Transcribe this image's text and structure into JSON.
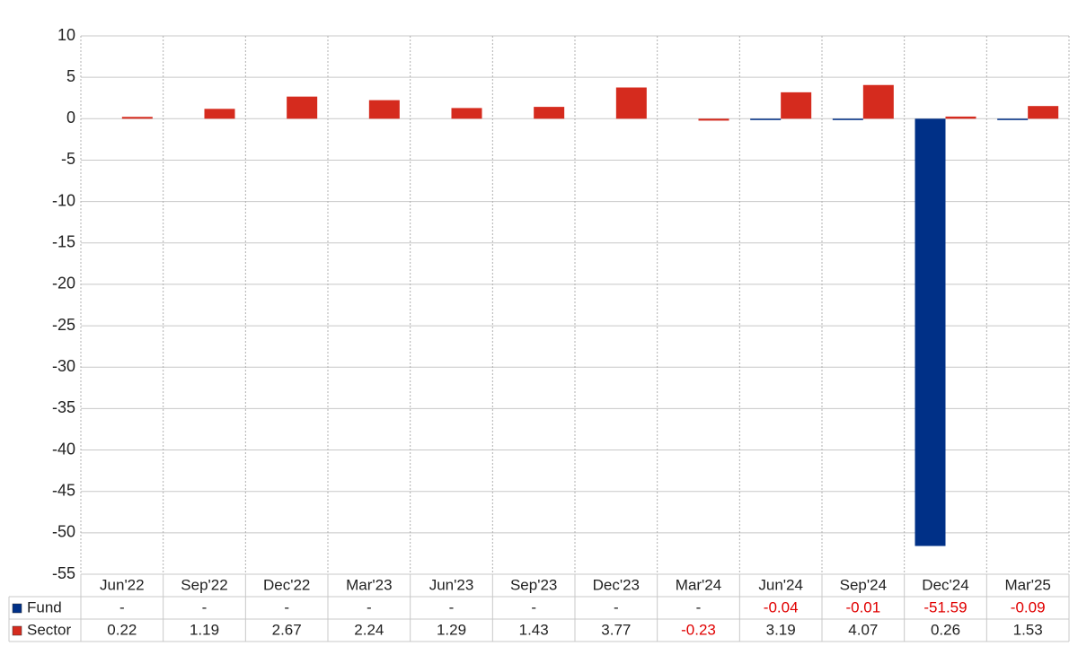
{
  "chart_data": {
    "type": "bar",
    "categories": [
      "Jun'22",
      "Sep'22",
      "Dec'22",
      "Mar'23",
      "Jun'23",
      "Sep'23",
      "Dec'23",
      "Mar'24",
      "Jun'24",
      "Sep'24",
      "Dec'24",
      "Mar'25"
    ],
    "series": [
      {
        "name": "Fund",
        "color": "#003087",
        "values": [
          null,
          null,
          null,
          null,
          null,
          null,
          null,
          null,
          -0.04,
          -0.01,
          -51.59,
          -0.09
        ],
        "value_labels": [
          "-",
          "-",
          "-",
          "-",
          "-",
          "-",
          "-",
          "-",
          "-0.04",
          "-0.01",
          "-51.59",
          "-0.09"
        ]
      },
      {
        "name": "Sector",
        "color": "#d52b1e",
        "values": [
          0.22,
          1.19,
          2.67,
          2.24,
          1.29,
          1.43,
          3.77,
          -0.23,
          3.19,
          4.07,
          0.26,
          1.53
        ]
      }
    ],
    "ylim": [
      -55,
      10
    ],
    "yticks": [
      10,
      5,
      0,
      -5,
      -10,
      -15,
      -20,
      -25,
      -30,
      -35,
      -40,
      -45,
      -50,
      -55
    ],
    "grid": true
  }
}
